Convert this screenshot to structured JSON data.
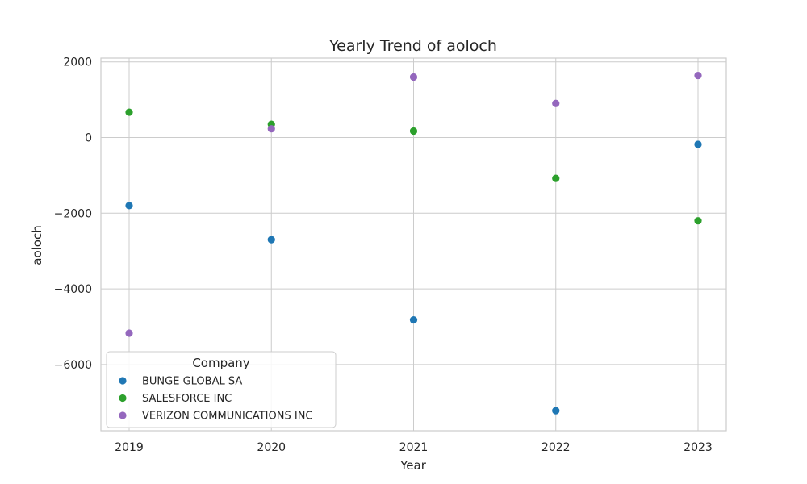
{
  "chart_data": {
    "type": "scatter",
    "title": "Yearly Trend of aoloch",
    "xlabel": "Year",
    "ylabel": "aoloch",
    "categories": [
      "2019",
      "2020",
      "2021",
      "2022",
      "2023"
    ],
    "ylim": [
      -7750,
      2100
    ],
    "yticks": [
      2000,
      0,
      -2000,
      -4000,
      -6000
    ],
    "ytick_labels": [
      "2000",
      "0",
      "−2000",
      "−4000",
      "−6000"
    ],
    "grid": true,
    "legend": {
      "title": "Company",
      "placement": "lower-left"
    },
    "series": [
      {
        "name": "BUNGE GLOBAL SA",
        "color": "#1f77b4",
        "values": [
          -1800,
          -2700,
          -4820,
          -7220,
          -180
        ]
      },
      {
        "name": "SALESFORCE INC",
        "color": "#2ca02c",
        "values": [
          670,
          350,
          170,
          -1080,
          -2200
        ]
      },
      {
        "name": "VERIZON COMMUNICATIONS INC",
        "color": "#9467bd",
        "values": [
          -5170,
          230,
          1600,
          900,
          1640
        ]
      }
    ]
  }
}
